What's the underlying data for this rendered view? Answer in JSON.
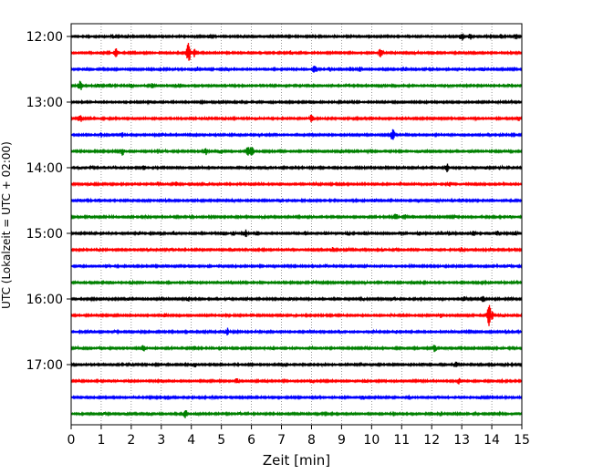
{
  "chart_data": {
    "type": "line",
    "chart_kind": "helicorder",
    "xlabel": "Zeit  [min]",
    "ylabel": "UTC (Lokalzeit = UTC + 02:00)",
    "xlim": [
      0,
      15
    ],
    "x_ticks": [
      "0",
      "1",
      "2",
      "3",
      "4",
      "5",
      "6",
      "7",
      "8",
      "9",
      "10",
      "11",
      "12",
      "13",
      "14",
      "15"
    ],
    "y_ticks": [
      "12:00",
      "13:00",
      "14:00",
      "15:00",
      "16:00",
      "17:00"
    ],
    "grid": "vertical-dotted",
    "trace_interval_min": 15,
    "start_time": "12:00",
    "colors": [
      "#000000",
      "#ff0000",
      "#0000ff",
      "#008000"
    ],
    "traces": [
      {
        "start": "12:00",
        "color": "#000000",
        "events": [
          [
            1.4,
            3
          ],
          [
            1.9,
            3
          ],
          [
            4.6,
            2
          ],
          [
            5.7,
            2
          ],
          [
            8.8,
            2
          ],
          [
            12.0,
            2
          ],
          [
            12.4,
            2
          ],
          [
            13.0,
            5
          ],
          [
            13.3,
            4
          ],
          [
            14.3,
            3
          ],
          [
            14.8,
            4
          ]
        ]
      },
      {
        "start": "12:15",
        "color": "#ff0000",
        "events": [
          [
            1.5,
            6
          ],
          [
            3.9,
            14
          ],
          [
            4.1,
            5
          ],
          [
            7.3,
            3
          ],
          [
            10.3,
            7
          ],
          [
            11.5,
            2
          ],
          [
            13.5,
            2
          ],
          [
            14.6,
            2
          ]
        ]
      },
      {
        "start": "12:30",
        "color": "#0000ff",
        "events": [
          [
            0.5,
            2
          ],
          [
            2.0,
            2
          ],
          [
            4.2,
            3
          ],
          [
            5.2,
            2
          ],
          [
            8.1,
            6
          ],
          [
            8.6,
            3
          ],
          [
            9.3,
            3
          ],
          [
            9.6,
            3
          ],
          [
            11.1,
            2
          ],
          [
            13.7,
            3
          ],
          [
            14.4,
            2
          ]
        ]
      },
      {
        "start": "12:45",
        "color": "#008000",
        "events": [
          [
            0.3,
            6
          ],
          [
            0.9,
            3
          ],
          [
            1.3,
            3
          ],
          [
            2.0,
            3
          ],
          [
            2.7,
            3
          ],
          [
            3.5,
            3
          ],
          [
            3.6,
            3
          ],
          [
            9.2,
            2
          ],
          [
            10.4,
            2
          ],
          [
            12.6,
            2
          ],
          [
            14.6,
            2
          ]
        ]
      },
      {
        "start": "13:00",
        "color": "#000000",
        "events": [
          [
            2.6,
            2
          ],
          [
            5.0,
            2
          ],
          [
            8.0,
            2
          ],
          [
            13.2,
            2
          ],
          [
            14.6,
            2
          ]
        ]
      },
      {
        "start": "13:15",
        "color": "#ff0000",
        "events": [
          [
            0.3,
            5
          ],
          [
            0.7,
            2
          ],
          [
            2.1,
            2
          ],
          [
            4.5,
            2
          ],
          [
            5.1,
            2
          ],
          [
            6.2,
            2
          ],
          [
            8.0,
            5
          ],
          [
            8.5,
            2
          ],
          [
            12.3,
            2
          ],
          [
            12.6,
            2
          ],
          [
            13.5,
            2
          ],
          [
            14.9,
            3
          ]
        ]
      },
      {
        "start": "13:30",
        "color": "#0000ff",
        "events": [
          [
            1.0,
            3
          ],
          [
            1.7,
            3
          ],
          [
            3.1,
            2
          ],
          [
            4.9,
            2
          ],
          [
            6.8,
            2
          ],
          [
            8.0,
            2
          ],
          [
            10.7,
            7
          ],
          [
            11.1,
            2
          ],
          [
            13.9,
            2
          ],
          [
            14.3,
            2
          ]
        ]
      },
      {
        "start": "13:45",
        "color": "#008000",
        "events": [
          [
            0.4,
            2
          ],
          [
            1.7,
            5
          ],
          [
            2.9,
            3
          ],
          [
            3.1,
            2
          ],
          [
            4.5,
            5
          ],
          [
            5.0,
            3
          ],
          [
            5.9,
            7
          ],
          [
            6.0,
            6
          ],
          [
            9.0,
            3
          ],
          [
            9.9,
            2
          ],
          [
            11.6,
            2
          ],
          [
            13.3,
            2
          ],
          [
            14.5,
            2
          ]
        ]
      },
      {
        "start": "14:00",
        "color": "#000000",
        "events": [
          [
            0.3,
            2
          ],
          [
            0.7,
            2
          ],
          [
            1.4,
            3
          ],
          [
            1.7,
            2
          ],
          [
            2.4,
            3
          ],
          [
            4.3,
            2
          ],
          [
            5.9,
            2
          ],
          [
            6.5,
            2
          ],
          [
            8.0,
            2
          ],
          [
            11.0,
            2
          ],
          [
            11.5,
            2
          ],
          [
            12.5,
            6
          ],
          [
            13.4,
            2
          ],
          [
            13.8,
            2
          ],
          [
            14.3,
            2
          ]
        ]
      },
      {
        "start": "14:15",
        "color": "#ff0000",
        "events": [
          [
            0.6,
            2
          ],
          [
            1.0,
            2
          ],
          [
            2.9,
            3
          ],
          [
            3.5,
            3
          ],
          [
            4.5,
            2
          ],
          [
            6.3,
            2
          ],
          [
            8.1,
            2
          ],
          [
            11.0,
            2
          ],
          [
            11.7,
            2
          ],
          [
            12.0,
            2
          ],
          [
            12.6,
            3
          ],
          [
            14.3,
            2
          ]
        ]
      },
      {
        "start": "14:30",
        "color": "#0000ff",
        "events": [
          [
            0.3,
            2
          ],
          [
            0.9,
            2
          ],
          [
            2.5,
            2
          ],
          [
            3.2,
            2
          ],
          [
            5.4,
            2
          ],
          [
            7.0,
            2
          ],
          [
            10.1,
            2
          ],
          [
            11.6,
            2
          ],
          [
            12.3,
            2
          ],
          [
            12.7,
            2
          ],
          [
            13.0,
            3
          ],
          [
            14.7,
            2
          ]
        ]
      },
      {
        "start": "14:45",
        "color": "#008000",
        "events": [
          [
            0.6,
            2
          ],
          [
            1.3,
            2
          ],
          [
            2.5,
            2
          ],
          [
            4.0,
            3
          ],
          [
            5.6,
            2
          ],
          [
            6.4,
            2
          ],
          [
            8.1,
            2
          ],
          [
            9.8,
            2
          ],
          [
            10.8,
            5
          ],
          [
            11.1,
            4
          ],
          [
            11.4,
            3
          ],
          [
            12.8,
            2
          ],
          [
            14.6,
            2
          ]
        ]
      },
      {
        "start": "15:00",
        "color": "#000000",
        "events": [
          [
            0.9,
            2
          ],
          [
            1.3,
            2
          ],
          [
            2.3,
            3
          ],
          [
            3.0,
            3
          ],
          [
            3.4,
            3
          ],
          [
            5.1,
            3
          ],
          [
            5.4,
            3
          ],
          [
            5.8,
            5
          ],
          [
            6.2,
            3
          ],
          [
            7.8,
            3
          ],
          [
            8.5,
            3
          ],
          [
            9.2,
            3
          ],
          [
            9.8,
            3
          ],
          [
            11.0,
            3
          ],
          [
            11.6,
            3
          ],
          [
            12.3,
            3
          ],
          [
            12.6,
            3
          ],
          [
            13.4,
            3
          ],
          [
            14.2,
            3
          ],
          [
            14.8,
            3
          ]
        ]
      },
      {
        "start": "15:15",
        "color": "#ff0000",
        "events": [
          [
            0.9,
            2
          ],
          [
            2.6,
            2
          ],
          [
            3.3,
            2
          ],
          [
            5.4,
            2
          ],
          [
            6.1,
            2
          ],
          [
            7.3,
            2
          ],
          [
            8.7,
            3
          ],
          [
            9.2,
            2
          ],
          [
            10.4,
            2
          ],
          [
            10.8,
            2
          ],
          [
            13.0,
            3
          ],
          [
            14.0,
            2
          ]
        ]
      },
      {
        "start": "15:30",
        "color": "#0000ff",
        "events": [
          [
            0.3,
            2
          ],
          [
            1.2,
            2
          ],
          [
            2.4,
            2
          ],
          [
            3.2,
            2
          ],
          [
            5.0,
            2
          ],
          [
            6.8,
            2
          ],
          [
            8.5,
            2
          ],
          [
            9.9,
            2
          ],
          [
            11.3,
            2
          ],
          [
            12.8,
            2
          ],
          [
            14.1,
            2
          ],
          [
            14.6,
            2
          ]
        ]
      },
      {
        "start": "15:45",
        "color": "#008000",
        "events": [
          [
            1.3,
            2
          ],
          [
            2.0,
            2
          ],
          [
            3.3,
            2
          ],
          [
            5.3,
            3
          ],
          [
            5.7,
            3
          ],
          [
            8.1,
            2
          ],
          [
            9.8,
            2
          ],
          [
            10.5,
            2
          ],
          [
            11.4,
            2
          ],
          [
            13.7,
            2
          ],
          [
            14.8,
            2
          ]
        ]
      },
      {
        "start": "16:00",
        "color": "#000000",
        "events": [
          [
            0.7,
            2
          ],
          [
            1.2,
            2
          ],
          [
            1.9,
            2
          ],
          [
            3.0,
            3
          ],
          [
            3.9,
            3
          ],
          [
            5.2,
            2
          ],
          [
            5.9,
            2
          ],
          [
            7.3,
            3
          ],
          [
            8.9,
            2
          ],
          [
            9.7,
            2
          ],
          [
            10.7,
            3
          ],
          [
            11.6,
            2
          ],
          [
            12.3,
            2
          ],
          [
            13.1,
            3
          ],
          [
            13.7,
            4
          ],
          [
            14.6,
            2
          ]
        ]
      },
      {
        "start": "16:15",
        "color": "#ff0000",
        "events": [
          [
            1.9,
            2
          ],
          [
            3.1,
            3
          ],
          [
            5.2,
            2
          ],
          [
            7.4,
            2
          ],
          [
            9.0,
            2
          ],
          [
            10.7,
            2
          ],
          [
            12.3,
            3
          ],
          [
            13.9,
            13
          ],
          [
            14.0,
            6
          ],
          [
            14.4,
            2
          ]
        ]
      },
      {
        "start": "16:30",
        "color": "#0000ff",
        "events": [
          [
            0.6,
            2
          ],
          [
            1.5,
            2
          ],
          [
            2.3,
            2
          ],
          [
            5.2,
            5
          ],
          [
            5.5,
            2
          ],
          [
            6.2,
            2
          ],
          [
            7.9,
            2
          ],
          [
            9.0,
            2
          ],
          [
            10.1,
            2
          ],
          [
            10.8,
            2
          ],
          [
            12.7,
            2
          ],
          [
            14.5,
            2
          ]
        ]
      },
      {
        "start": "16:45",
        "color": "#008000",
        "events": [
          [
            0.2,
            2
          ],
          [
            0.9,
            2
          ],
          [
            2.4,
            4
          ],
          [
            3.3,
            2
          ],
          [
            4.1,
            3
          ],
          [
            5.0,
            2
          ],
          [
            6.7,
            2
          ],
          [
            8.0,
            2
          ],
          [
            9.8,
            2
          ],
          [
            11.0,
            2
          ],
          [
            12.1,
            5
          ],
          [
            12.6,
            2
          ],
          [
            14.0,
            2
          ]
        ]
      },
      {
        "start": "17:00",
        "color": "#000000",
        "events": [
          [
            1.2,
            2
          ],
          [
            2.0,
            2
          ],
          [
            4.1,
            4
          ],
          [
            5.5,
            2
          ],
          [
            7.1,
            2
          ],
          [
            8.4,
            2
          ],
          [
            10.0,
            2
          ],
          [
            11.7,
            2
          ],
          [
            12.8,
            4
          ],
          [
            14.4,
            2
          ]
        ]
      },
      {
        "start": "17:15",
        "color": "#ff0000",
        "events": [
          [
            0.3,
            2
          ],
          [
            1.3,
            2
          ],
          [
            3.0,
            2
          ],
          [
            5.5,
            4
          ],
          [
            6.5,
            2
          ],
          [
            8.0,
            2
          ],
          [
            9.8,
            2
          ],
          [
            11.6,
            2
          ],
          [
            12.9,
            4
          ],
          [
            14.4,
            2
          ]
        ]
      },
      {
        "start": "17:30",
        "color": "#0000ff",
        "events": [
          [
            0.6,
            2
          ],
          [
            2.2,
            2
          ],
          [
            3.2,
            3
          ],
          [
            4.7,
            2
          ],
          [
            6.4,
            2
          ],
          [
            8.2,
            2
          ],
          [
            9.7,
            4
          ],
          [
            11.3,
            2
          ],
          [
            12.2,
            2
          ],
          [
            13.6,
            2
          ],
          [
            14.4,
            2
          ]
        ]
      },
      {
        "start": "17:45",
        "color": "#008000",
        "events": [
          [
            0.3,
            2
          ],
          [
            1.1,
            2
          ],
          [
            1.8,
            2
          ],
          [
            2.6,
            2
          ],
          [
            3.8,
            5
          ],
          [
            4.2,
            2
          ],
          [
            5.6,
            2
          ],
          [
            7.6,
            2
          ],
          [
            9.4,
            2
          ],
          [
            10.7,
            2
          ],
          [
            12.3,
            2
          ],
          [
            13.5,
            2
          ],
          [
            14.3,
            2
          ]
        ]
      }
    ]
  }
}
